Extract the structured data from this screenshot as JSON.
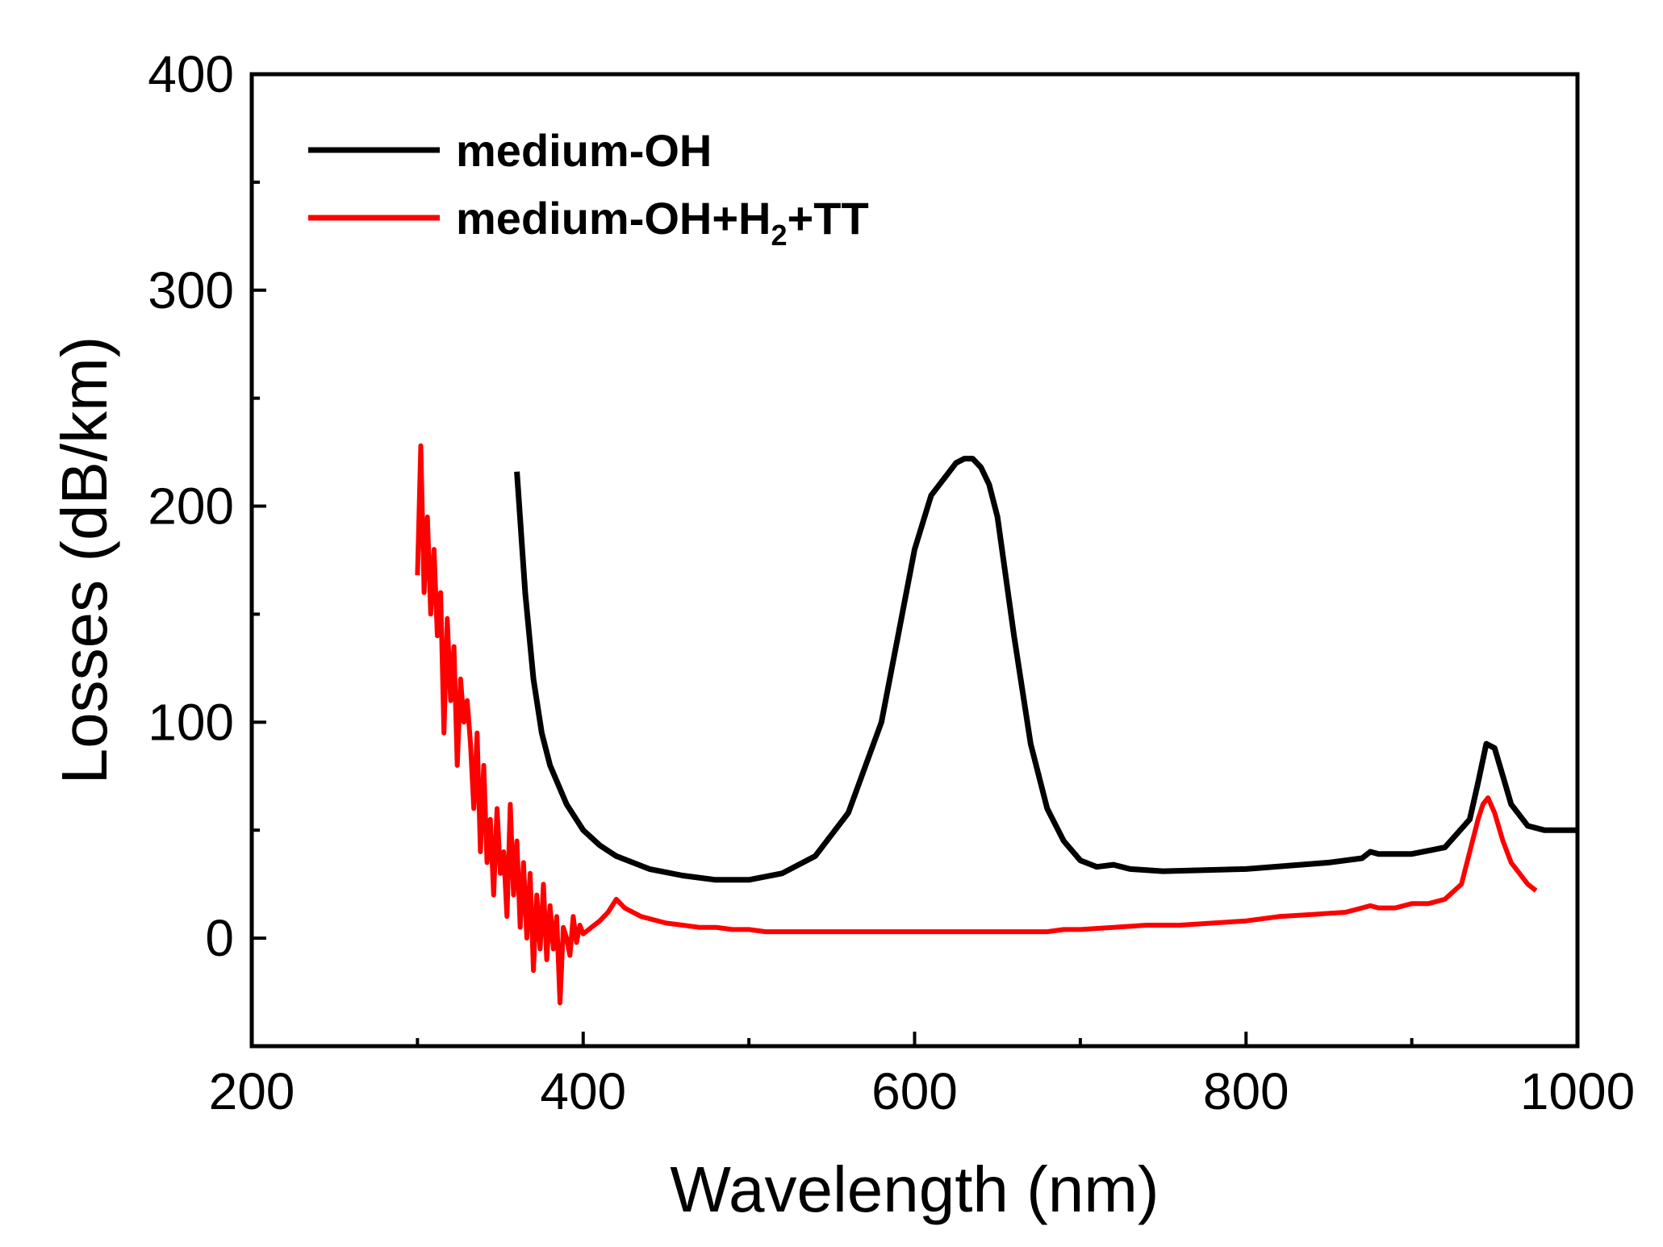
{
  "chart_data": {
    "type": "line",
    "title": "",
    "xlabel": "Wavelength (nm)",
    "ylabel": "Losses (dB/km)",
    "xlim": [
      200,
      1000
    ],
    "ylim": [
      -50,
      400
    ],
    "x_ticks": [
      200,
      400,
      600,
      800,
      1000
    ],
    "x_tick_labels": [
      "200",
      "400",
      "600",
      "800",
      "1000"
    ],
    "x_minor_ticks": [
      300,
      500,
      700,
      900
    ],
    "y_ticks": [
      0,
      100,
      200,
      300,
      400
    ],
    "y_tick_labels": [
      "0",
      "100",
      "200",
      "300",
      "400"
    ],
    "y_minor_ticks": [
      50,
      150,
      250,
      350
    ],
    "grid": false,
    "legend_position": "top-left",
    "series": [
      {
        "name": "medium-OH",
        "color": "#000000",
        "x": [
          360,
          365,
          370,
          375,
          380,
          390,
          400,
          410,
          420,
          440,
          460,
          480,
          500,
          520,
          540,
          560,
          580,
          590,
          600,
          610,
          615,
          620,
          625,
          630,
          635,
          640,
          645,
          650,
          660,
          670,
          680,
          690,
          700,
          710,
          720,
          730,
          750,
          800,
          850,
          870,
          875,
          880,
          900,
          920,
          935,
          940,
          945,
          950,
          955,
          960,
          970,
          980,
          1000
        ],
        "y": [
          216,
          160,
          120,
          95,
          80,
          62,
          50,
          43,
          38,
          32,
          29,
          27,
          27,
          30,
          38,
          58,
          100,
          140,
          180,
          205,
          210,
          215,
          220,
          222,
          222,
          218,
          210,
          195,
          140,
          90,
          60,
          45,
          36,
          33,
          34,
          32,
          31,
          32,
          35,
          37,
          40,
          39,
          39,
          42,
          55,
          72,
          90,
          88,
          75,
          62,
          52,
          50,
          50
        ]
      },
      {
        "name": "medium-OH+H2+TT",
        "name_main": "medium-OH+H",
        "name_sub": "2",
        "name_tail": "+TT",
        "color": "#ff0000",
        "x": [
          300,
          302,
          304,
          306,
          308,
          310,
          312,
          314,
          316,
          318,
          320,
          322,
          324,
          326,
          328,
          330,
          332,
          334,
          336,
          338,
          340,
          342,
          344,
          346,
          348,
          350,
          352,
          354,
          356,
          358,
          360,
          362,
          364,
          366,
          368,
          370,
          372,
          374,
          376,
          378,
          380,
          382,
          384,
          386,
          388,
          390,
          392,
          394,
          396,
          398,
          400,
          405,
          410,
          415,
          420,
          425,
          430,
          435,
          440,
          450,
          460,
          470,
          480,
          490,
          500,
          510,
          520,
          530,
          540,
          550,
          560,
          570,
          580,
          590,
          600,
          610,
          620,
          630,
          640,
          650,
          660,
          670,
          680,
          690,
          700,
          720,
          740,
          760,
          780,
          800,
          820,
          840,
          860,
          870,
          875,
          880,
          890,
          900,
          910,
          920,
          930,
          935,
          940,
          943,
          946,
          950,
          955,
          960,
          965,
          970,
          975
        ],
        "y": [
          168,
          228,
          160,
          195,
          150,
          180,
          140,
          160,
          95,
          148,
          110,
          135,
          80,
          120,
          100,
          110,
          90,
          60,
          95,
          40,
          80,
          35,
          55,
          20,
          60,
          30,
          40,
          10,
          62,
          20,
          45,
          5,
          35,
          0,
          30,
          -15,
          20,
          -5,
          25,
          -10,
          15,
          -5,
          10,
          -30,
          5,
          0,
          -8,
          10,
          -2,
          6,
          2,
          5,
          8,
          12,
          18,
          14,
          12,
          10,
          9,
          7,
          6,
          5,
          5,
          4,
          4,
          3,
          3,
          3,
          3,
          3,
          3,
          3,
          3,
          3,
          3,
          3,
          3,
          3,
          3,
          3,
          3,
          3,
          3,
          4,
          4,
          5,
          6,
          6,
          7,
          8,
          10,
          11,
          12,
          14,
          15,
          14,
          14,
          16,
          16,
          18,
          25,
          40,
          55,
          62,
          65,
          58,
          45,
          35,
          30,
          25,
          22
        ]
      }
    ]
  }
}
